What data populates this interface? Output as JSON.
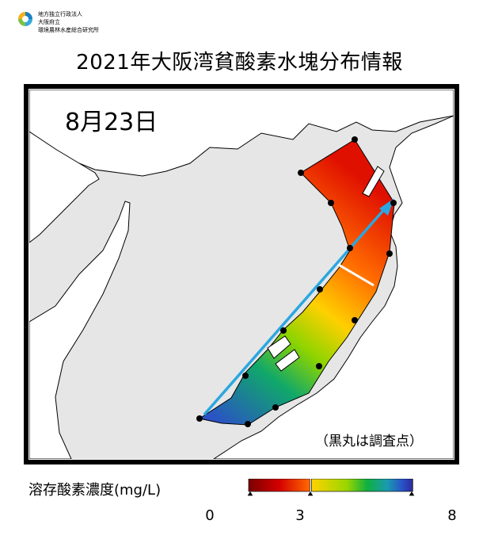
{
  "organization": {
    "line1": "地方独立行政法人",
    "line2": "大阪府立",
    "line3": "環境農林水産総合研究所",
    "logo_colors": [
      "#1a7fc4",
      "#35a9e0",
      "#7dc242",
      "#f3b21b"
    ]
  },
  "title": "2021年大阪湾貧酸素水塊分布情報",
  "map": {
    "date": "8月23日",
    "note": "（黒丸は調査点）",
    "arrow_color": "#2aa7e0",
    "station_marker": "black-dot",
    "station_count": 15,
    "land_color": "#ffffff",
    "sea_color": "#e6e6e6"
  },
  "legend": {
    "title": "溶存酸素濃度(mg/L)",
    "ticks": [
      "0",
      "3",
      "8"
    ],
    "colors": [
      "#7a0000",
      "#d40000",
      "#ff6a00",
      "#ffd200",
      "#9ad600",
      "#10b040",
      "#1a9ab0",
      "#2a50c8",
      "#2d2a9a"
    ]
  }
}
